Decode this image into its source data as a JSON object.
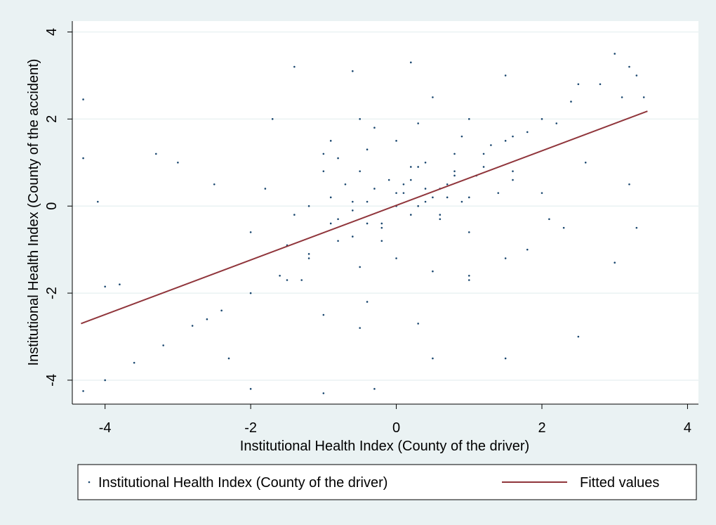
{
  "chart_data": {
    "type": "scatter",
    "xlabel": "Institutional Health Index (County of the driver)",
    "ylabel": "Institutional Health Index (County of the accident)",
    "xlim": [
      -4.45,
      4.15
    ],
    "ylim": [
      -4.55,
      4.25
    ],
    "xticks": [
      -4,
      -2,
      0,
      2,
      4
    ],
    "yticks": [
      -4,
      -2,
      0,
      2,
      4
    ],
    "grid": true,
    "legend": "bottom",
    "series": [
      {
        "name": "Institutional Health Index (County of the driver)",
        "color": "#1a476f",
        "type": "scatter",
        "x": [
          -4.3,
          -4,
          -3.6,
          -3.2,
          -2.8,
          -2.4,
          -2,
          -1.6,
          -1.2,
          -0.8,
          -0.4,
          0,
          0.4,
          0.8,
          1.2,
          1.6,
          2,
          2.4,
          2.8,
          3.2,
          -4.3,
          -4.3,
          -4.1,
          -3.8,
          -4,
          -3.3,
          -3,
          -2.5,
          -2.3,
          -1.7,
          -1.4,
          -0.6,
          0.2,
          1.5,
          2.5,
          3,
          3.3,
          3.4,
          3.2,
          3.3,
          3,
          2.5,
          1.5,
          0.5,
          -0.3,
          -1,
          -2,
          -2.6,
          -1.5,
          -1,
          -0.5,
          0.3,
          1,
          1.8,
          2.3,
          2,
          1.5,
          1,
          0.5,
          -0.5,
          -1,
          -1.8,
          -2,
          -1.5,
          -1.2,
          -0.9,
          -0.7,
          -0.5,
          -0.3,
          -0.1,
          0.1,
          0.3,
          0.5,
          0.7,
          0.9,
          1.1,
          -0.8,
          -0.6,
          -0.4,
          -0.2,
          0,
          0.2,
          0.4,
          0.6,
          0.8,
          1,
          -1,
          -0.6,
          -0.2,
          0.2,
          0.6,
          1,
          1.4,
          -1.2,
          -0.8,
          -0.4,
          0,
          0.4,
          0.8,
          1.2,
          1.6,
          -0.5,
          0,
          0.5,
          1,
          1.5,
          -1.4,
          -0.9,
          -0.3,
          0.3,
          0.9,
          1.3,
          1.8,
          2.2,
          -0.2,
          0.1,
          0.6,
          0.3,
          -0.6,
          0.7,
          1.6,
          2.1,
          2.6,
          3.1,
          -1.3,
          -0.9,
          -0.4,
          0.2
        ],
        "values": [
          -4.25,
          -4,
          -3.6,
          -3.2,
          -2.75,
          -2.4,
          -2,
          -1.6,
          -1.2,
          -0.8,
          -0.4,
          0,
          0.4,
          0.8,
          1.2,
          1.6,
          2,
          2.4,
          2.8,
          3.2,
          2.45,
          1.1,
          0.1,
          -1.8,
          -1.85,
          1.2,
          1,
          0.5,
          -3.5,
          2,
          3.2,
          3.1,
          3.3,
          3,
          2.8,
          3.5,
          3,
          2.5,
          0.5,
          -0.5,
          -1.3,
          -3,
          -3.5,
          -3.5,
          -4.2,
          -4.3,
          -4.2,
          -2.6,
          -1.7,
          -2.5,
          -2.8,
          -2.7,
          -1.7,
          -1,
          -0.5,
          0.3,
          1.5,
          2,
          2.5,
          2,
          1.2,
          0.4,
          -0.6,
          -0.9,
          0,
          0.2,
          0.5,
          0.8,
          0.4,
          0.6,
          0.3,
          0.9,
          0.2,
          0.5,
          0.1,
          0.7,
          -0.3,
          -0.1,
          0.1,
          -0.4,
          0.3,
          0.6,
          0.1,
          0.4,
          0.7,
          0.2,
          0.8,
          -0.7,
          -0.5,
          -0.2,
          -0.3,
          -0.6,
          0.3,
          -1.1,
          1.1,
          1.3,
          1.5,
          1,
          1.2,
          0.9,
          0.8,
          -1.4,
          -1.2,
          -1.5,
          -1.6,
          -1.2,
          -0.2,
          -0.4,
          1.8,
          1.9,
          1.6,
          1.4,
          1.7,
          1.9,
          -0.8,
          0.5,
          -0.2,
          0,
          0.1,
          0.2,
          0.6,
          -0.3,
          1,
          2.5,
          -1.7,
          1.5,
          -2.2,
          0.9
        ]
      },
      {
        "name": "Fitted values",
        "color": "#90353b",
        "type": "line",
        "x": [
          -4.33,
          3.45
        ],
        "values": [
          -2.7,
          2.18
        ]
      }
    ]
  }
}
